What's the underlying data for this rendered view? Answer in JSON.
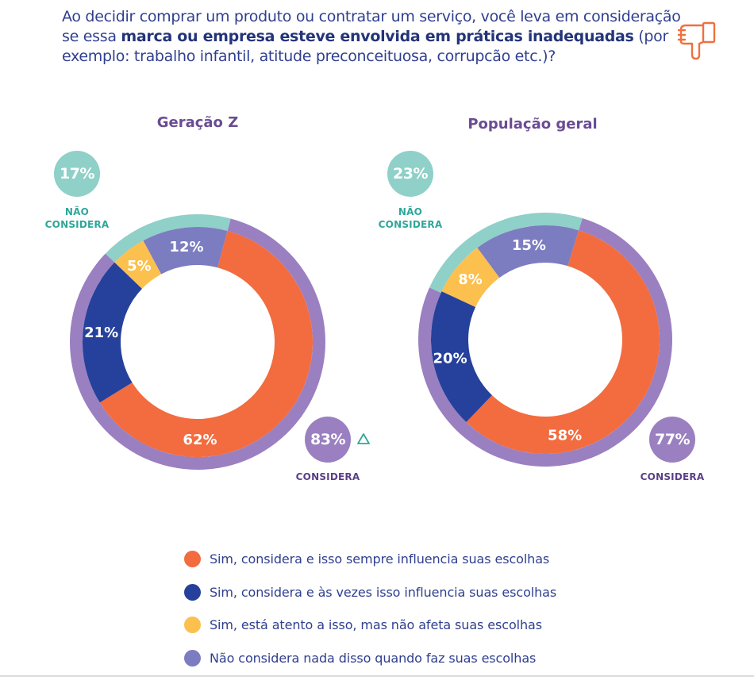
{
  "question": {
    "part1": "Ao decidir comprar um produto ou contratar um serviço, você leva em consideração se essa ",
    "bold": "marca ou empresa esteve envolvida em práticas inadequadas",
    "part2": " (por exemplo: trabalho infantil, atitude preconceituosa, corrupcão etc.)?",
    "icon": "thumbs-down-icon"
  },
  "colors": {
    "always": "#f26c3f",
    "sometimes": "#26419b",
    "aware": "#fcc04f",
    "not_consider": "#7c7cc0",
    "considera_ring": "#9a80c0",
    "nao_considera_ring": "#8fd0c8"
  },
  "chart_data": [
    {
      "type": "pie",
      "variant": "donut",
      "title": "Geração Z",
      "inner_series": [
        {
          "name": "Sim, considera e isso sempre influencia suas escolhas",
          "value": 62,
          "label": "62%"
        },
        {
          "name": "Sim, considera e às vezes isso influencia suas escolhas",
          "value": 21,
          "label": "21%"
        },
        {
          "name": "Sim, está atento a isso, mas não afeta suas escolhas",
          "value": 5,
          "label": "5%"
        },
        {
          "name": "Não considera nada disso quando faz suas escolhas",
          "value": 12,
          "label": "12%"
        }
      ],
      "outer_series": [
        {
          "name": "CONSIDERA",
          "value": 83,
          "label": "83%"
        },
        {
          "name": "NÃO CONSIDERA",
          "value": 17,
          "label": "17%"
        }
      ],
      "annotation": "△ (significant difference indicator next to 83%)"
    },
    {
      "type": "pie",
      "variant": "donut",
      "title": "População geral",
      "inner_series": [
        {
          "name": "Sim, considera e isso sempre influencia suas escolhas",
          "value": 58,
          "label": "58%"
        },
        {
          "name": "Sim, considera e às vezes isso influencia suas escolhas",
          "value": 20,
          "label": "20%"
        },
        {
          "name": "Sim, está atento a isso, mas não afeta suas escolhas",
          "value": 8,
          "label": "8%"
        },
        {
          "name": "Não considera nada disso quando faz suas escolhas",
          "value": 15,
          "label": "15%"
        }
      ],
      "outer_series": [
        {
          "name": "CONSIDERA",
          "value": 77,
          "label": "77%"
        },
        {
          "name": "NÃO CONSIDERA",
          "value": 23,
          "label": "23%"
        }
      ]
    }
  ],
  "charts": {
    "left": {
      "title": "Geração Z",
      "nao_considera_pct": "17%",
      "nao_considera_label_1": "NÃO",
      "nao_considera_label_2": "CONSIDERA",
      "considera_pct": "83%",
      "considera_label": "CONSIDERA"
    },
    "right": {
      "title": "População geral",
      "nao_considera_pct": "23%",
      "nao_considera_label_1": "NÃO",
      "nao_considera_label_2": "CONSIDERA",
      "considera_pct": "77%",
      "considera_label": "CONSIDERA"
    }
  },
  "legend": [
    {
      "label": "Sim, considera e isso sempre influencia suas escolhas",
      "color": "#f26c3f"
    },
    {
      "label": "Sim, considera e às vezes isso influencia suas escolhas",
      "color": "#26419b"
    },
    {
      "label": "Sim, está atento a isso, mas não afeta suas escolhas",
      "color": "#fcc04f"
    },
    {
      "label": "Não considera nada disso quando faz suas escolhas",
      "color": "#7c7cc0"
    }
  ]
}
